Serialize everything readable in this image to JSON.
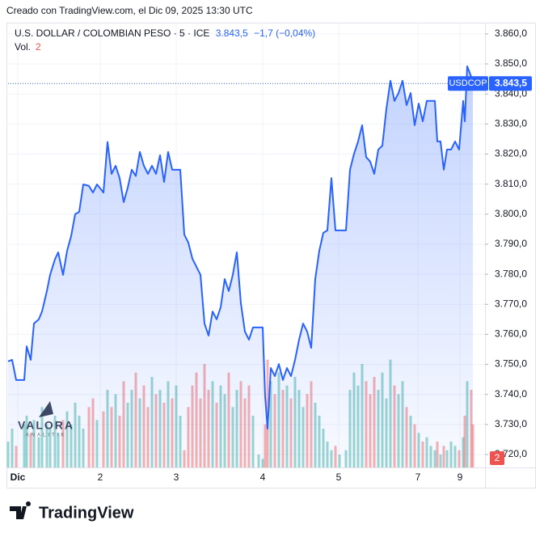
{
  "header": {
    "credit": "Creado con TradingView.com, el Dic 09, 2025 13:30 UTC"
  },
  "chart_data": {
    "type": "area",
    "symbol_title": "U.S. DOLLAR / COLOMBIAN PESO · 5 · ICE",
    "last_price": {
      "value": 3843.5,
      "label": "3.843,5"
    },
    "change_label": "−1,7 (−0,04%)",
    "ticker": "USDCOP",
    "volume_legend": "Vol.",
    "volume_value": 2,
    "color": "#2962ff",
    "volume_colors": {
      "up": "#26a69a",
      "down": "#ef5350"
    },
    "grid": true,
    "x": [
      0,
      5,
      10,
      20,
      23,
      28,
      32,
      38,
      42,
      48,
      52,
      58,
      62,
      68,
      73,
      78,
      83,
      88,
      93,
      100,
      105,
      110,
      118,
      123,
      128,
      133,
      138,
      143,
      148,
      153,
      158,
      163,
      168,
      173,
      178,
      183,
      188,
      193,
      198,
      203,
      208,
      213,
      218,
      223,
      228,
      233,
      238,
      243,
      248,
      253,
      258,
      263,
      268,
      273,
      278,
      283,
      288,
      293,
      298,
      303,
      310,
      315,
      318,
      321,
      325,
      330,
      335,
      340,
      345,
      350,
      355,
      360,
      365,
      370,
      375,
      380,
      385,
      390,
      395,
      400,
      405,
      410,
      418,
      423,
      428,
      433,
      438,
      443,
      448,
      453,
      458,
      463,
      468,
      473,
      478,
      483,
      488,
      493,
      498,
      503,
      508,
      513,
      518,
      523,
      528,
      531,
      535,
      539,
      543,
      548,
      553,
      558,
      563,
      565,
      568,
      573,
      575
    ],
    "values": [
      3751,
      3751.5,
      3744.8,
      3744.8,
      3756,
      3751.5,
      3763.6,
      3765,
      3767.6,
      3774.4,
      3779.8,
      3785,
      3787.3,
      3779.8,
      3787.8,
      3792.7,
      3800,
      3800.8,
      3809.9,
      3809.4,
      3807.2,
      3809.9,
      3807.2,
      3824,
      3813.4,
      3816.1,
      3812,
      3804,
      3808.8,
      3814.8,
      3812.7,
      3820.7,
      3816.1,
      3813.4,
      3816.1,
      3813.4,
      3819.6,
      3810.7,
      3820.7,
      3814.8,
      3814.8,
      3814.8,
      3793.2,
      3790.5,
      3785.2,
      3782.5,
      3779.8,
      3763.6,
      3759.6,
      3767.6,
      3765,
      3769,
      3778.4,
      3774.4,
      3779.8,
      3787.3,
      3770.3,
      3760.9,
      3758.2,
      3762.3,
      3762.3,
      3762.3,
      3739.4,
      3728.6,
      3748.8,
      3746.1,
      3750.1,
      3744.8,
      3748.8,
      3746.1,
      3751.5,
      3758.2,
      3763.6,
      3760.9,
      3755.5,
      3778.4,
      3787.8,
      3793.8,
      3794.6,
      3812,
      3794.6,
      3794.6,
      3794.6,
      3814.8,
      3820.1,
      3824.2,
      3829.6,
      3819,
      3817.5,
      3813.4,
      3821.5,
      3822.8,
      3835,
      3844.4,
      3837.7,
      3840.3,
      3844.4,
      3836.3,
      3840.3,
      3829.6,
      3836.8,
      3830.9,
      3837.7,
      3837.7,
      3837.7,
      3824.2,
      3824.2,
      3814.8,
      3821.5,
      3821.5,
      3824.2,
      3821.5,
      3837.7,
      3830.9,
      3849.2,
      3845.7,
      3843.5
    ],
    "volume": [
      30,
      45,
      25,
      50,
      60,
      40,
      55,
      35,
      70,
      50,
      45,
      60,
      40,
      55,
      65,
      50,
      75,
      60,
      45,
      70,
      80,
      55,
      65,
      90,
      70,
      85,
      60,
      100,
      75,
      90,
      110,
      80,
      95,
      70,
      105,
      85,
      90,
      75,
      100,
      80,
      95,
      60,
      20,
      70,
      95,
      110,
      80,
      120,
      90,
      100,
      75,
      95,
      85,
      110,
      70,
      90,
      100,
      80,
      95,
      60,
      15,
      10,
      50,
      125,
      100,
      85,
      110,
      90,
      95,
      80,
      105,
      90,
      70,
      85,
      100,
      75,
      60,
      45,
      30,
      20,
      25,
      15,
      20,
      90,
      110,
      95,
      120,
      100,
      85,
      105,
      90,
      110,
      80,
      125,
      95,
      85,
      100,
      70,
      60,
      50,
      40,
      30,
      35,
      25,
      20,
      30,
      15,
      25,
      20,
      30,
      25,
      20,
      35,
      60,
      100,
      90,
      50
    ],
    "volume_ylim": [
      0,
      150
    ],
    "xlim": [
      0,
      573
    ],
    "xticks": [
      {
        "value": 12,
        "label": "Dic"
      },
      {
        "value": 114,
        "label": "2"
      },
      {
        "value": 208,
        "label": "3"
      },
      {
        "value": 315,
        "label": "4"
      },
      {
        "value": 409,
        "label": "5"
      },
      {
        "value": 507,
        "label": "7"
      },
      {
        "value": 559,
        "label": "9"
      }
    ],
    "ylim": [
      3715.7,
      3863.2
    ],
    "yticks": [
      {
        "value": 3720,
        "label": "3.720,0"
      },
      {
        "value": 3730,
        "label": "3.730,0"
      },
      {
        "value": 3740,
        "label": "3.740,0"
      },
      {
        "value": 3750,
        "label": "3.750,0"
      },
      {
        "value": 3760,
        "label": "3.760,0"
      },
      {
        "value": 3770,
        "label": "3.770,0"
      },
      {
        "value": 3780,
        "label": "3.780,0"
      },
      {
        "value": 3790,
        "label": "3.790,0"
      },
      {
        "value": 3800,
        "label": "3.800,0"
      },
      {
        "value": 3810,
        "label": "3.810,0"
      },
      {
        "value": 3820,
        "label": "3.820,0"
      },
      {
        "value": 3830,
        "label": "3.830,0"
      },
      {
        "value": 3840,
        "label": "3.840,0"
      },
      {
        "value": 3850,
        "label": "3.850,0"
      },
      {
        "value": 3860,
        "label": "3.860,0"
      }
    ]
  },
  "watermark": {
    "name": "VALORA",
    "sub": "ANALITIK"
  },
  "footer": {
    "brand": "TradingView"
  }
}
